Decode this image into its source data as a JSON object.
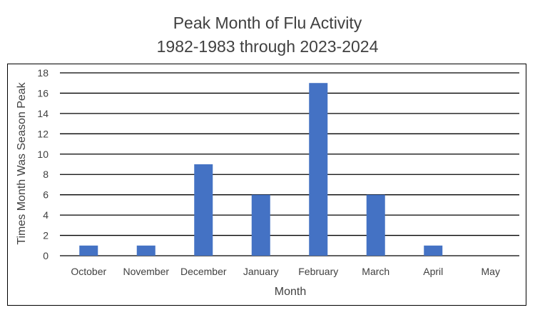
{
  "chart_data": {
    "type": "bar",
    "title": "Peak Month of Flu Activity",
    "subtitle": "1982-1983 through 2023-2024",
    "xlabel": "Month",
    "ylabel": "Times Month Was Season Peak",
    "categories": [
      "October",
      "November",
      "December",
      "January",
      "February",
      "March",
      "April",
      "May"
    ],
    "values": [
      1,
      1,
      9,
      6,
      17,
      6,
      1,
      0
    ],
    "ylim": [
      0,
      18
    ],
    "yticks": [
      0,
      2,
      4,
      6,
      8,
      10,
      12,
      14,
      16,
      18
    ],
    "grid": true,
    "legend": "none",
    "bar_color": "#4472C4"
  }
}
